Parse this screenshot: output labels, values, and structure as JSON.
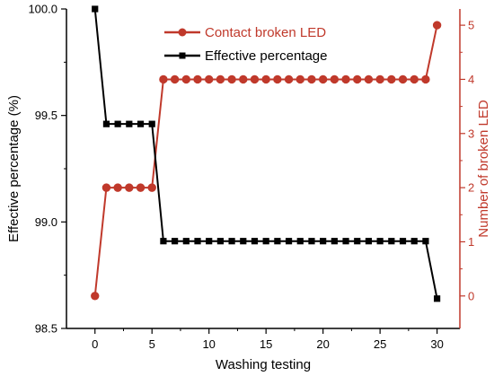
{
  "chart_data": {
    "type": "line",
    "xlabel": "Washing testing",
    "ylabel_left": "Effective percentage (%)",
    "ylabel_right": "Number of broken LED",
    "xlim": [
      -2.5,
      32
    ],
    "ylim_left": [
      98.5,
      100.0
    ],
    "ylim_right": [
      -0.6,
      5.3
    ],
    "x_ticks": [
      0,
      5,
      10,
      15,
      20,
      25,
      30
    ],
    "y_left_ticks": [
      98.5,
      99.0,
      99.5,
      100.0
    ],
    "y_left_tick_labels": [
      "98.5",
      "99.0",
      "99.5",
      "100.0"
    ],
    "y_right_ticks": [
      0,
      1,
      2,
      3,
      4,
      5
    ],
    "x": [
      0,
      1,
      2,
      3,
      4,
      5,
      6,
      7,
      8,
      9,
      10,
      11,
      12,
      13,
      14,
      15,
      16,
      17,
      18,
      19,
      20,
      21,
      22,
      23,
      24,
      25,
      26,
      27,
      28,
      29,
      30
    ],
    "series": [
      {
        "name": "Contact broken LED",
        "axis": "right",
        "color": "#c0392b",
        "marker": "circle",
        "values": [
          0,
          2,
          2,
          2,
          2,
          2,
          4,
          4,
          4,
          4,
          4,
          4,
          4,
          4,
          4,
          4,
          4,
          4,
          4,
          4,
          4,
          4,
          4,
          4,
          4,
          4,
          4,
          4,
          4,
          4,
          5
        ]
      },
      {
        "name": "Effective percentage",
        "axis": "left",
        "color": "#000000",
        "marker": "square",
        "values": [
          100.0,
          99.46,
          99.46,
          99.46,
          99.46,
          99.46,
          98.91,
          98.91,
          98.91,
          98.91,
          98.91,
          98.91,
          98.91,
          98.91,
          98.91,
          98.91,
          98.91,
          98.91,
          98.91,
          98.91,
          98.91,
          98.91,
          98.91,
          98.91,
          98.91,
          98.91,
          98.91,
          98.91,
          98.91,
          98.91,
          98.64
        ]
      }
    ],
    "legend_position": "top-center",
    "grid": false
  }
}
